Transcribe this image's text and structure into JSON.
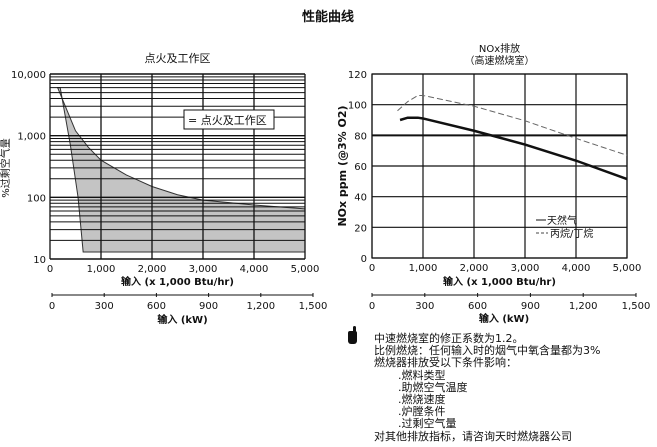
{
  "page_title": "性能曲线",
  "chart_data": [
    {
      "type": "area",
      "title": "点火及工作区",
      "xlabel": "输入 (x 1,000 Btu/hr)",
      "x2label": "输入 (kW)",
      "ylabel": "%过剩空气量",
      "yscale": "log",
      "ylim": [
        10,
        10000
      ],
      "xlim": [
        0,
        5000
      ],
      "x2lim": [
        0,
        1500
      ],
      "xticks": [
        "0",
        "1,000",
        "2,000",
        "3,000",
        "4,000",
        "5,000"
      ],
      "x2ticks": [
        "0",
        "300",
        "600",
        "900",
        "1,200",
        "1,500"
      ],
      "yticks": [
        "10",
        "100",
        "1,000",
        "10,000"
      ],
      "legend": "点火及工作区",
      "upper_boundary": [
        [
          150,
          6000
        ],
        [
          300,
          3000
        ],
        [
          500,
          1200
        ],
        [
          750,
          650
        ],
        [
          1000,
          400
        ],
        [
          1500,
          230
        ],
        [
          2000,
          150
        ],
        [
          2500,
          110
        ],
        [
          3000,
          90
        ],
        [
          4000,
          75
        ],
        [
          5000,
          65
        ]
      ],
      "lower_boundary": [
        [
          200,
          6000
        ],
        [
          400,
          700
        ],
        [
          550,
          100
        ],
        [
          650,
          13
        ],
        [
          5000,
          13
        ]
      ],
      "fill_color": "#c4c4c4"
    },
    {
      "type": "line",
      "title": "NOx排放",
      "subtitle": "（高速燃烧室）",
      "xlabel": "输入 (x 1,000 Btu/hr)",
      "x2label": "输入 (kW)",
      "ylabel": "NOx ppm (@3% O2)",
      "ylim": [
        0,
        120
      ],
      "xlim": [
        0,
        5000
      ],
      "x2lim": [
        0,
        1500
      ],
      "xticks": [
        "0",
        "1,000",
        "2,000",
        "3,000",
        "4,000",
        "5,000"
      ],
      "x2ticks": [
        "0",
        "300",
        "600",
        "900",
        "1,200",
        "1,500"
      ],
      "yticks": [
        "0",
        "20",
        "40",
        "60",
        "80",
        "100",
        "120"
      ],
      "legend_position": "bottom-right",
      "series": [
        {
          "name": "天然气",
          "style": "solid",
          "x": [
            550,
            700,
            900,
            1000,
            2000,
            3000,
            4000,
            5000
          ],
          "y": [
            90,
            91.5,
            91.5,
            91,
            83,
            74,
            63.5,
            51.5
          ]
        },
        {
          "name": "丙烷/丁烷",
          "style": "dashed",
          "x": [
            500,
            700,
            900,
            1000,
            2000,
            3000,
            4000,
            5000
          ],
          "y": [
            96,
            102,
            106,
            106,
            99,
            89.5,
            78,
            67
          ]
        }
      ]
    }
  ],
  "notes": {
    "lines": [
      "中速燃烧室的修正系数为1.2。",
      "比例燃烧：任何输入时的烟气中氧含量都为3%",
      "燃烧器排放受以下条件影响："
    ],
    "items": [
      ".燃料类型",
      ".助燃空气温度",
      ".燃烧速度",
      ".炉膛条件",
      ".过剩空气量"
    ],
    "footer": "对其他排放指标，请咨询天时燃烧器公司"
  }
}
